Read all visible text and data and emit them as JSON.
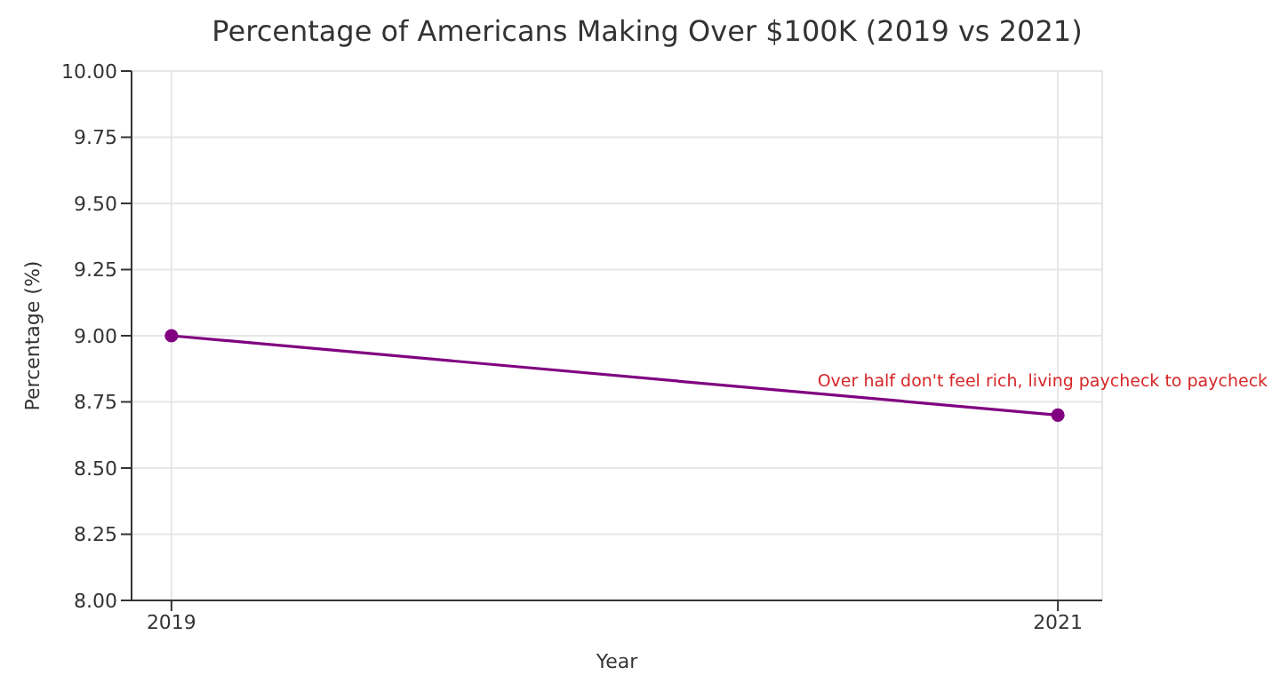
{
  "chart_data": {
    "type": "line",
    "title": "Percentage of Americans Making Over $100K (2019 vs 2021)",
    "xlabel": "Year",
    "ylabel": "Percentage (%)",
    "x": [
      2019,
      2021
    ],
    "series": [
      {
        "color": "#800080",
        "values": [
          9.0,
          8.7
        ]
      }
    ],
    "xlim": [
      2018.91,
      2021.1
    ],
    "xticks": [
      2019,
      2021
    ],
    "ylim": [
      8.0,
      10.0
    ],
    "yticks": [
      {
        "value": 8.0,
        "label": "8.00"
      },
      {
        "value": 8.25,
        "label": "8.25"
      },
      {
        "value": 8.5,
        "label": "8.50"
      },
      {
        "value": 8.75,
        "label": "8.75"
      },
      {
        "value": 9.0,
        "label": "9.00"
      },
      {
        "value": 9.25,
        "label": "9.25"
      },
      {
        "value": 9.5,
        "label": "9.50"
      },
      {
        "value": 9.75,
        "label": "9.75"
      },
      {
        "value": 10.0,
        "label": "10.00"
      }
    ],
    "grid": true,
    "marker": "circle",
    "line_style": "solid",
    "annotations": [
      {
        "text": "Over half don't feel rich, living paycheck to paycheck",
        "x": 2021,
        "y": 8.7
      }
    ]
  }
}
